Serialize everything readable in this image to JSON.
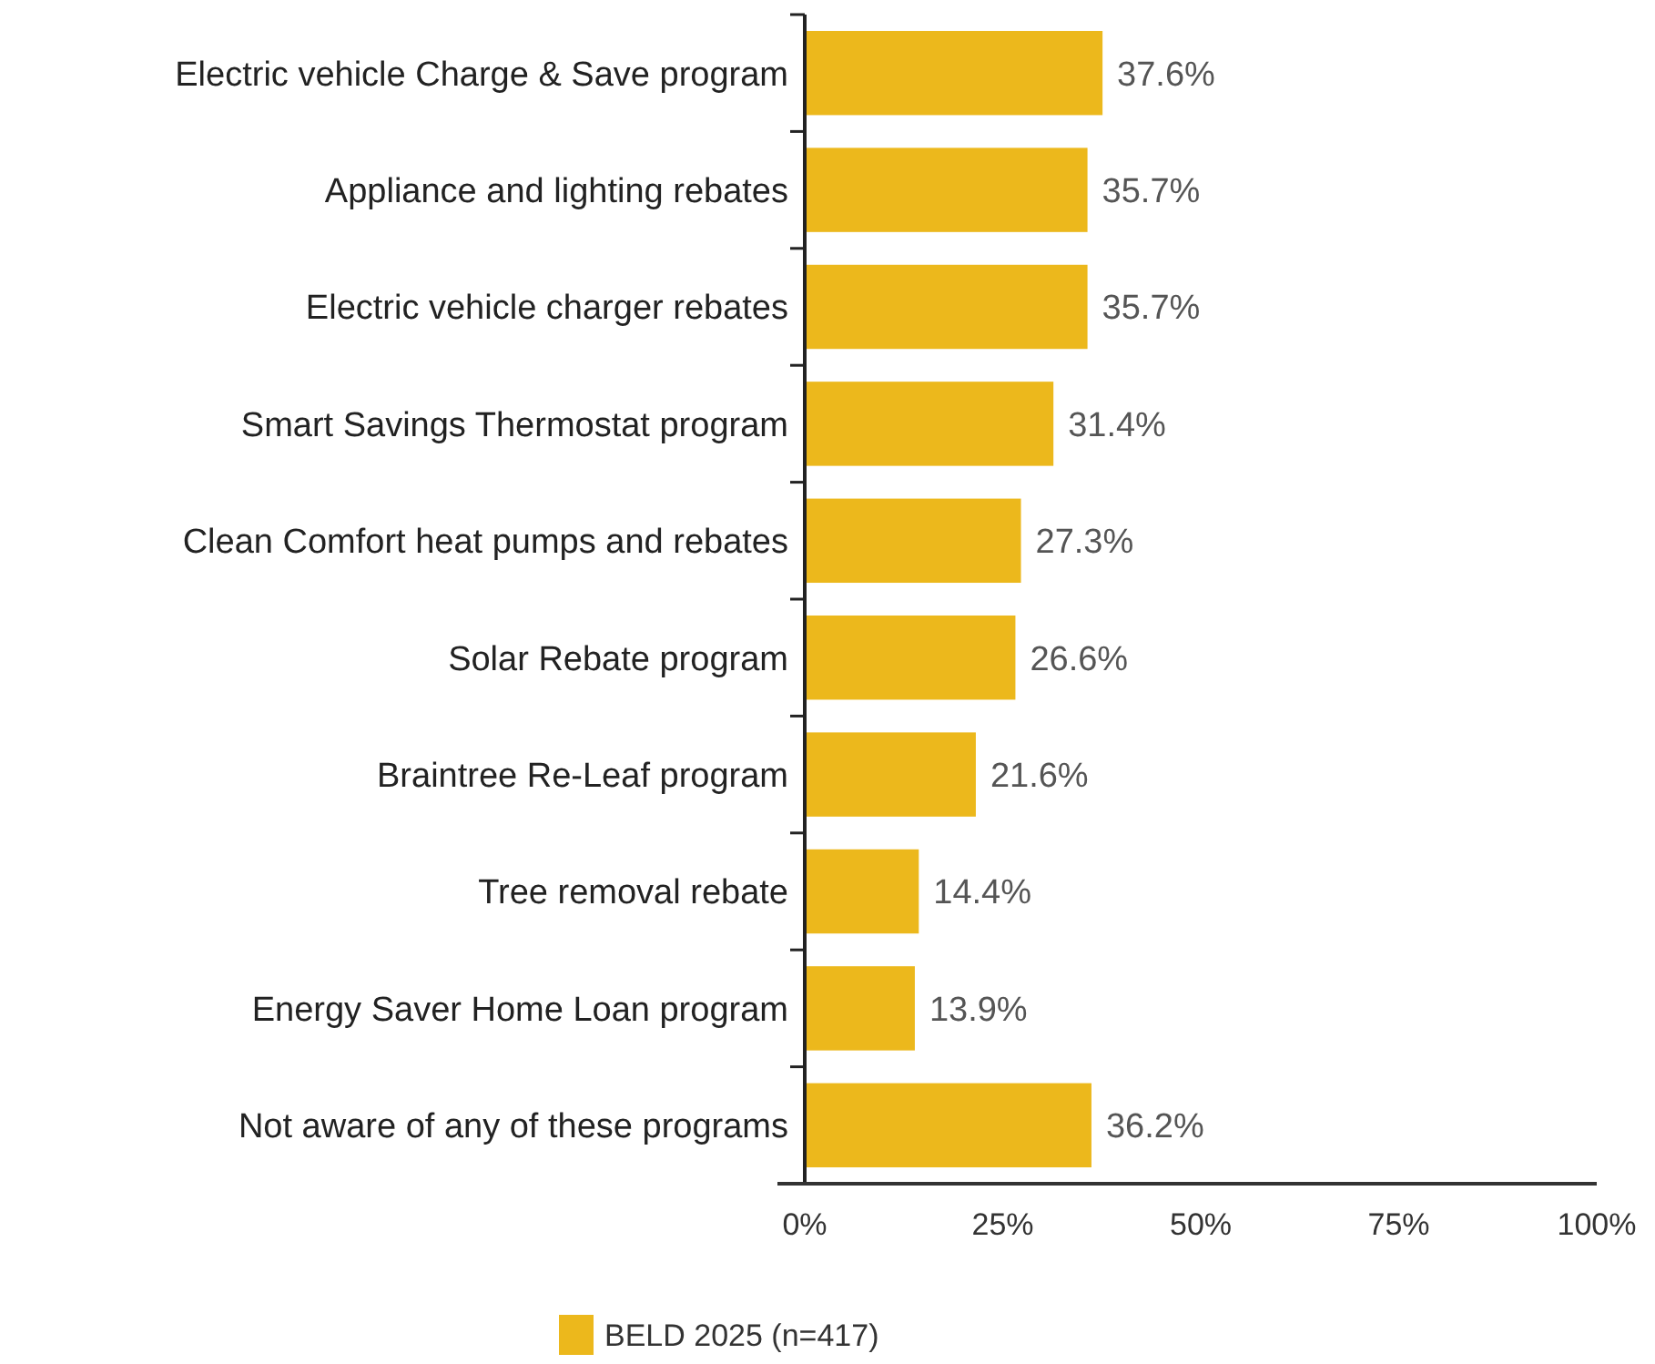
{
  "chart_data": {
    "type": "bar",
    "orientation": "horizontal",
    "categories": [
      "Electric vehicle Charge & Save program",
      "Appliance and lighting rebates",
      "Electric vehicle charger rebates",
      "Smart Savings Thermostat program",
      "Clean Comfort heat pumps and rebates",
      "Solar Rebate program",
      "Braintree Re-Leaf program",
      "Tree removal rebate",
      "Energy Saver Home Loan program",
      "Not aware of any of these programs"
    ],
    "series": [
      {
        "name": "BELD 2025 (n=417)",
        "color": "#ecb81c",
        "values": [
          37.6,
          35.7,
          35.7,
          31.4,
          27.3,
          26.6,
          21.6,
          14.4,
          13.9,
          36.2
        ]
      }
    ],
    "value_labels": [
      "37.6%",
      "35.7%",
      "35.7%",
      "31.4%",
      "27.3%",
      "26.6%",
      "21.6%",
      "14.4%",
      "13.9%",
      "36.2%"
    ],
    "xlim": [
      0,
      100
    ],
    "xticks": [
      {
        "value": 0,
        "label": "0%"
      },
      {
        "value": 25,
        "label": "25%"
      },
      {
        "value": 50,
        "label": "50%"
      },
      {
        "value": 75,
        "label": "75%"
      },
      {
        "value": 100,
        "label": "100%"
      }
    ],
    "grid": false,
    "legend": "bottom"
  }
}
